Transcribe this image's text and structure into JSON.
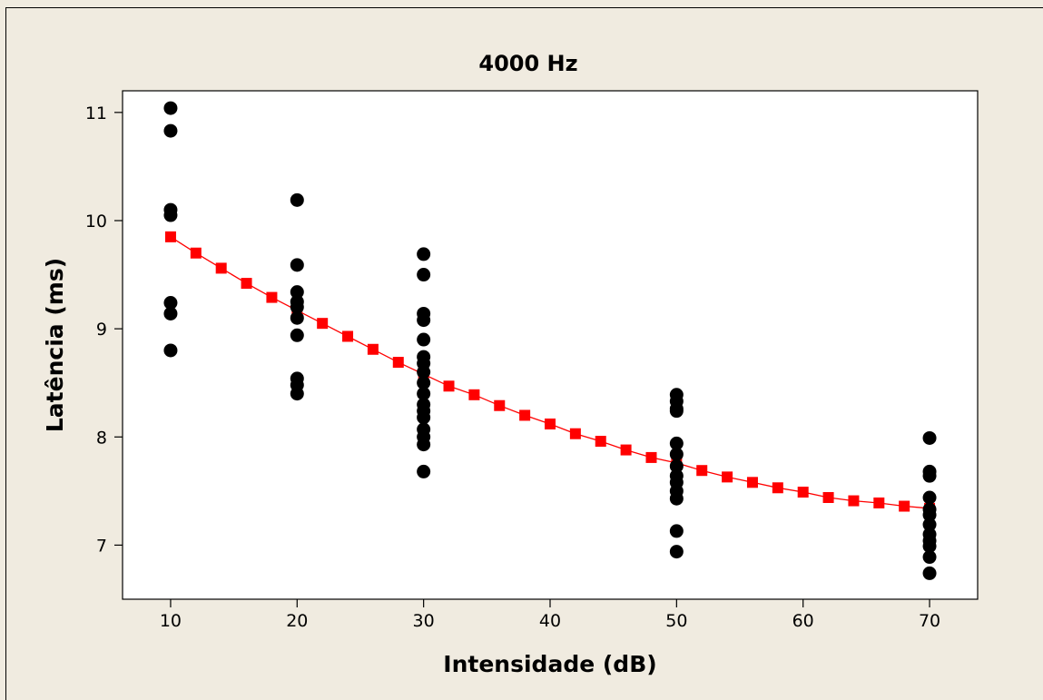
{
  "chart_data": {
    "type": "scatter",
    "title": "4000 Hz",
    "xlabel": "Intensidade (dB)",
    "ylabel": "Latência (ms)",
    "xlim": [
      6.2,
      73.8
    ],
    "ylim": [
      6.5,
      11.2
    ],
    "xticks": [
      10,
      20,
      30,
      40,
      50,
      60,
      70
    ],
    "yticks": [
      7,
      8,
      9,
      10,
      11
    ],
    "grid": false,
    "series": [
      {
        "kind": "observed",
        "marker": "circle",
        "color": "#000000",
        "points": [
          [
            10,
            11.04
          ],
          [
            10,
            10.83
          ],
          [
            10,
            10.1
          ],
          [
            10,
            10.05
          ],
          [
            10,
            9.24
          ],
          [
            10,
            9.14
          ],
          [
            10,
            8.8
          ],
          [
            20,
            10.19
          ],
          [
            20,
            9.59
          ],
          [
            20,
            9.34
          ],
          [
            20,
            9.25
          ],
          [
            20,
            9.2
          ],
          [
            20,
            9.1
          ],
          [
            20,
            8.94
          ],
          [
            20,
            8.54
          ],
          [
            20,
            8.48
          ],
          [
            20,
            8.4
          ],
          [
            30,
            9.69
          ],
          [
            30,
            9.5
          ],
          [
            30,
            9.14
          ],
          [
            30,
            9.08
          ],
          [
            30,
            8.9
          ],
          [
            30,
            8.74
          ],
          [
            30,
            8.68
          ],
          [
            30,
            8.6
          ],
          [
            30,
            8.5
          ],
          [
            30,
            8.4
          ],
          [
            30,
            8.3
          ],
          [
            30,
            8.24
          ],
          [
            30,
            8.18
          ],
          [
            30,
            8.07
          ],
          [
            30,
            8.0
          ],
          [
            30,
            7.93
          ],
          [
            30,
            7.68
          ],
          [
            50,
            8.39
          ],
          [
            50,
            8.33
          ],
          [
            50,
            8.26
          ],
          [
            50,
            8.24
          ],
          [
            50,
            7.94
          ],
          [
            50,
            7.84
          ],
          [
            50,
            7.73
          ],
          [
            50,
            7.64
          ],
          [
            50,
            7.58
          ],
          [
            50,
            7.5
          ],
          [
            50,
            7.43
          ],
          [
            50,
            7.13
          ],
          [
            50,
            6.94
          ],
          [
            70,
            7.99
          ],
          [
            70,
            7.68
          ],
          [
            70,
            7.64
          ],
          [
            70,
            7.44
          ],
          [
            70,
            7.33
          ],
          [
            70,
            7.28
          ],
          [
            70,
            7.19
          ],
          [
            70,
            7.1
          ],
          [
            70,
            7.04
          ],
          [
            70,
            6.99
          ],
          [
            70,
            6.89
          ],
          [
            70,
            6.74
          ]
        ]
      },
      {
        "kind": "fitted",
        "marker": "square",
        "line": true,
        "color": "#ff0000",
        "x": [
          10,
          12,
          14,
          16,
          18,
          20,
          22,
          24,
          26,
          28,
          30,
          32,
          34,
          36,
          38,
          40,
          42,
          44,
          46,
          48,
          50,
          52,
          54,
          56,
          58,
          60,
          62,
          64,
          66,
          68,
          70
        ],
        "y": [
          9.85,
          9.7,
          9.56,
          9.42,
          9.29,
          9.17,
          9.05,
          8.93,
          8.81,
          8.69,
          8.58,
          8.47,
          8.39,
          8.29,
          8.2,
          8.12,
          8.03,
          7.96,
          7.88,
          7.81,
          7.76,
          7.69,
          7.63,
          7.58,
          7.53,
          7.49,
          7.44,
          7.41,
          7.39,
          7.36,
          7.34
        ]
      }
    ]
  }
}
